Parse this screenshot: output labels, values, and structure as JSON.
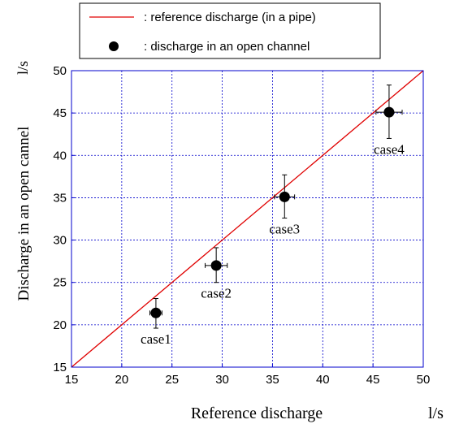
{
  "chart_data": {
    "type": "scatter",
    "xlabel": "Reference discharge",
    "ylabel": "Discharge in an open cannel",
    "xunit": "l/s",
    "yunit": "l/s",
    "xlim": [
      15,
      50
    ],
    "ylim": [
      15,
      50
    ],
    "xticks": [
      "15",
      "20",
      "25",
      "30",
      "35",
      "40",
      "45",
      "50"
    ],
    "yticks": [
      "15",
      "20",
      "25",
      "30",
      "35",
      "40",
      "45",
      "50"
    ],
    "grid": true,
    "legend": {
      "placement": "top",
      "entries": [
        {
          "label": ": reference discharge (in a pipe)",
          "marker": "line",
          "color": "#e00000"
        },
        {
          "label": ": discharge in an open channel",
          "marker": "dot",
          "color": "#000000"
        }
      ]
    },
    "reference_line": {
      "x": [
        15,
        50
      ],
      "y": [
        15,
        50
      ],
      "color": "#e00000"
    },
    "points": [
      {
        "label": "case1",
        "x": 23.4,
        "y": 21.4,
        "x_err": 0.6,
        "y_err_low": 1.8,
        "y_err_high": 1.7
      },
      {
        "label": "case2",
        "x": 29.4,
        "y": 27.0,
        "x_err": 1.1,
        "y_err_low": 2.0,
        "y_err_high": 2.1
      },
      {
        "label": "case3",
        "x": 36.2,
        "y": 35.1,
        "x_err": 1.0,
        "y_err_low": 2.5,
        "y_err_high": 2.6
      },
      {
        "label": "case4",
        "x": 46.6,
        "y": 45.1,
        "x_err": 1.3,
        "y_err_low": 3.1,
        "y_err_high": 3.2
      }
    ],
    "colors": {
      "grid": "#0000cc",
      "frame": "#0000cc",
      "point": "#000000"
    }
  }
}
